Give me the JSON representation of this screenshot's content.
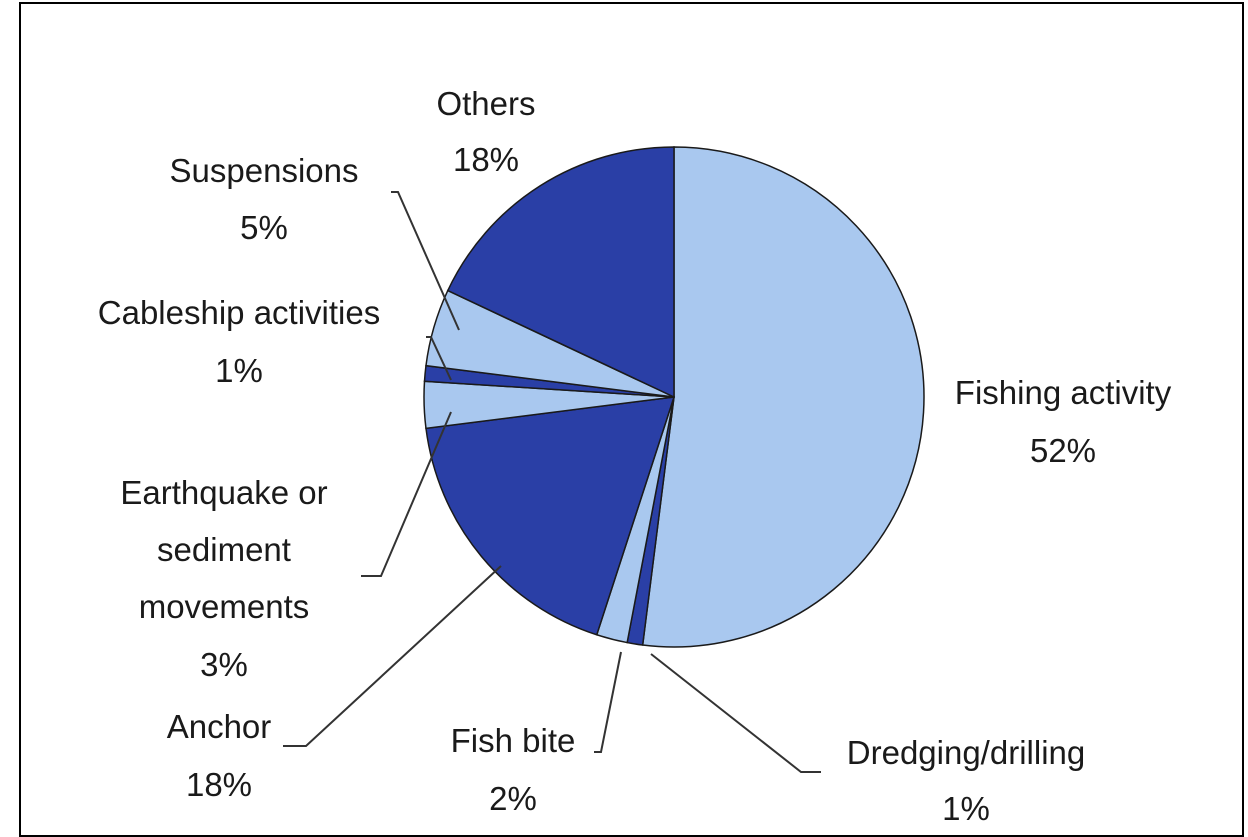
{
  "chart_data": {
    "type": "pie",
    "title": "",
    "slices": [
      {
        "label": "Fishing activity",
        "value": 52,
        "value_label": "52%",
        "color": "#a9c8ef"
      },
      {
        "label": "Dredging/drilling",
        "value": 1,
        "value_label": "1%",
        "color": "#2a3fa6"
      },
      {
        "label": "Fish bite",
        "value": 2,
        "value_label": "2%",
        "color": "#a9c8ef"
      },
      {
        "label": "Anchor",
        "value": 18,
        "value_label": "18%",
        "color": "#2a3fa6"
      },
      {
        "label": "Earthquake or sediment movements",
        "value": 3,
        "value_label": "3%",
        "color": "#a9c8ef"
      },
      {
        "label": "Cableship activities",
        "value": 1,
        "value_label": "1%",
        "color": "#2a3fa6"
      },
      {
        "label": "Suspensions",
        "value": 5,
        "value_label": "5%",
        "color": "#a9c8ef"
      },
      {
        "label": "Others",
        "value": 18,
        "value_label": "18%",
        "color": "#2a3fa6"
      }
    ],
    "start_angle": "12 o'clock",
    "direction": "clockwise",
    "legend": "none (labels outside slices with leader lines)"
  }
}
